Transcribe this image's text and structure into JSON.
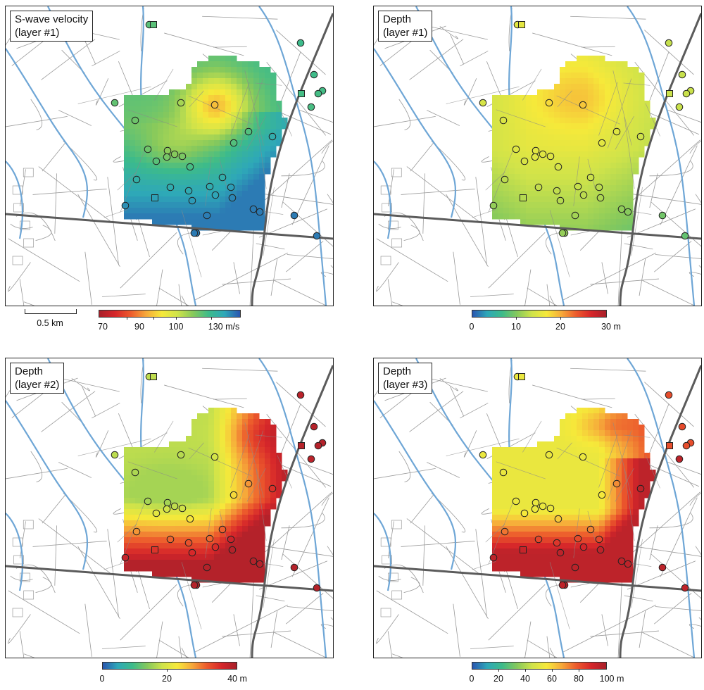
{
  "panels": [
    {
      "id": "p1",
      "title_line1": "S-wave velocity",
      "title_line2": "(layer #1)",
      "field": "vs1",
      "unit": "m/s"
    },
    {
      "id": "p2",
      "title_line1": "Depth",
      "title_line2": "(layer #1)",
      "field": "d1",
      "unit": "m"
    },
    {
      "id": "p3",
      "title_line1": "Depth",
      "title_line2": "(layer #2)",
      "field": "d2",
      "unit": "m"
    },
    {
      "id": "p4",
      "title_line1": "Depth",
      "title_line2": "(layer #3)",
      "field": "d3",
      "unit": "m"
    }
  ],
  "colorbars": [
    {
      "id": "cb1",
      "palette": "reversed",
      "range": [
        70,
        130
      ],
      "ticks": [
        "70",
        "90",
        "100",
        "130 m/s"
      ]
    },
    {
      "id": "cb2",
      "palette": "normal",
      "range": [
        0,
        30
      ],
      "ticks": [
        "0",
        "10",
        "20",
        "30 m"
      ]
    },
    {
      "id": "cb3",
      "palette": "normal",
      "range": [
        0,
        40
      ],
      "ticks": [
        "0",
        "20",
        "40 m"
      ]
    },
    {
      "id": "cb4",
      "palette": "normal",
      "range": [
        0,
        100
      ],
      "ticks": [
        "0",
        "20",
        "40",
        "60",
        "80",
        "100 m"
      ]
    }
  ],
  "scale_bar": {
    "label": "0.5 km"
  },
  "colors": {
    "river": "#6ea6d6",
    "road": "#9a9a9a",
    "main_road": "#5b5b5b",
    "palette": [
      "#2a56b0",
      "#2ea8b8",
      "#3dbb8a",
      "#86c95c",
      "#cfe34a",
      "#f6e93a",
      "#f6a93a",
      "#ec5a2c",
      "#d6262a",
      "#a8202a"
    ]
  }
}
